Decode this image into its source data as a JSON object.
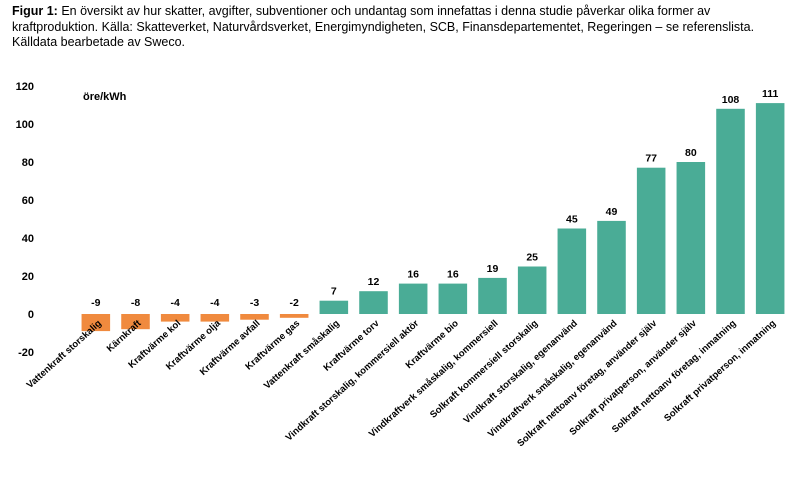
{
  "caption": {
    "label": "Figur 1:",
    "text": " En översikt av hur skatter, avgifter, subventioner och undantag som innefattas i denna studie påverkar olika former av kraftproduktion. Källa: Skatteverket, Naturvårdsverket, Energimyndigheten, SCB, Finansdepartementet, Regeringen – se referenslista. Källdata bearbetade av Sweco."
  },
  "colors": {
    "negative": "#f08a3e",
    "positive": "#4aac96"
  },
  "chart_data": {
    "type": "bar",
    "ylabel": "öre/kWh",
    "ylim": [
      -20,
      120
    ],
    "yticks": [
      120,
      100,
      80,
      60,
      40,
      20,
      0,
      -20
    ],
    "grid": false,
    "categories": [
      "Vattenkraft storskalig",
      "Kärnkraft",
      "Kraftvärme kol",
      "Kraftvärme olja",
      "Kraftvärme avfall",
      "Kraftvärme gas",
      "Vattenkraft småskalig",
      "Kraftvärme torv",
      "Vindkraft storskalig, kommersiell aktör",
      "Kraftvärme bio",
      "Vindkraftverk småskalig, kommersiell",
      "Solkraft kommersiell storskalig",
      "Vindkraft storskalig, egenanvänd",
      "Vindkraftverk småskalig, egenanvänd",
      "Solkraft nettoanv företag, använder själv",
      "Solkraft privatperson, använder själv",
      "Solkraft nettoanv företag, inmatning",
      "Solkraft privatperson, inmatning"
    ],
    "values": [
      -9,
      -8,
      -4,
      -4,
      -3,
      -2,
      7,
      12,
      16,
      16,
      19,
      25,
      45,
      49,
      77,
      80,
      108,
      111
    ]
  }
}
